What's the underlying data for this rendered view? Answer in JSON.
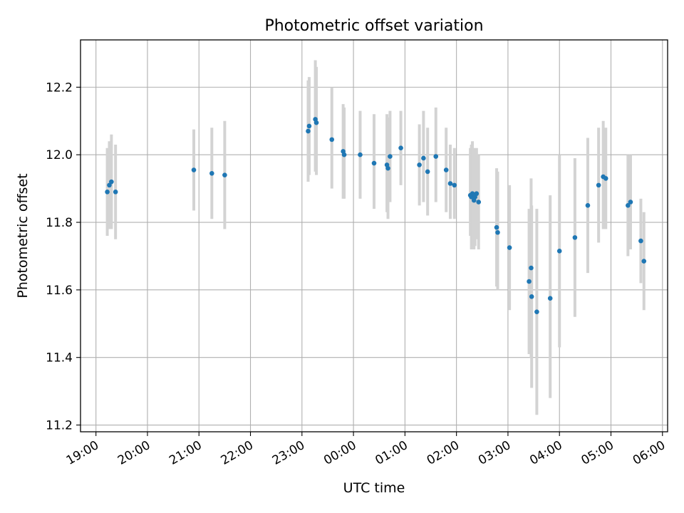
{
  "chart_data": {
    "type": "scatter",
    "title": "Photometric offset variation",
    "xlabel": "UTC time",
    "ylabel": "Photometric offset",
    "x_unit": "hour",
    "x_range": [
      -5.3,
      6.1
    ],
    "ylim": [
      11.18,
      12.34
    ],
    "grid": true,
    "legend": "none",
    "x_ticks": [
      {
        "value": -5,
        "label": "19:00"
      },
      {
        "value": -4,
        "label": "20:00"
      },
      {
        "value": -3,
        "label": "21:00"
      },
      {
        "value": -2,
        "label": "22:00"
      },
      {
        "value": -1,
        "label": "23:00"
      },
      {
        "value": 0,
        "label": "00:00"
      },
      {
        "value": 1,
        "label": "01:00"
      },
      {
        "value": 2,
        "label": "02:00"
      },
      {
        "value": 3,
        "label": "03:00"
      },
      {
        "value": 4,
        "label": "04:00"
      },
      {
        "value": 5,
        "label": "05:00"
      },
      {
        "value": 6,
        "label": "06:00"
      }
    ],
    "y_ticks": [
      {
        "value": 11.2,
        "label": "11.2"
      },
      {
        "value": 11.4,
        "label": "11.4"
      },
      {
        "value": 11.6,
        "label": "11.6"
      },
      {
        "value": 11.8,
        "label": "11.8"
      },
      {
        "value": 12.0,
        "label": "12.0"
      },
      {
        "value": 12.2,
        "label": "12.2"
      }
    ],
    "colors": {
      "point": "#1f77b4",
      "errorbar": "#d3d3d3",
      "grid": "#b0b0b0",
      "axis": "#000000"
    },
    "points": [
      {
        "x": -4.78,
        "y": 11.89,
        "lo": 11.76,
        "hi": 12.02
      },
      {
        "x": -4.74,
        "y": 11.91,
        "lo": 11.78,
        "hi": 12.04
      },
      {
        "x": -4.7,
        "y": 11.92,
        "lo": 11.78,
        "hi": 12.06
      },
      {
        "x": -4.62,
        "y": 11.89,
        "lo": 11.75,
        "hi": 12.03
      },
      {
        "x": -3.1,
        "y": 11.955,
        "lo": 11.835,
        "hi": 12.075
      },
      {
        "x": -2.75,
        "y": 11.945,
        "lo": 11.81,
        "hi": 12.08
      },
      {
        "x": -2.5,
        "y": 11.94,
        "lo": 11.78,
        "hi": 12.1
      },
      {
        "x": -0.88,
        "y": 12.07,
        "lo": 11.92,
        "hi": 12.22
      },
      {
        "x": -0.86,
        "y": 12.085,
        "lo": 11.94,
        "hi": 12.23
      },
      {
        "x": -0.74,
        "y": 12.105,
        "lo": 11.95,
        "hi": 12.28
      },
      {
        "x": -0.72,
        "y": 12.095,
        "lo": 11.94,
        "hi": 12.26
      },
      {
        "x": -0.42,
        "y": 12.045,
        "lo": 11.9,
        "hi": 12.2
      },
      {
        "x": -0.2,
        "y": 12.01,
        "lo": 11.87,
        "hi": 12.15
      },
      {
        "x": -0.18,
        "y": 12.0,
        "lo": 11.87,
        "hi": 12.14
      },
      {
        "x": 0.13,
        "y": 12.0,
        "lo": 11.87,
        "hi": 12.13
      },
      {
        "x": 0.4,
        "y": 11.975,
        "lo": 11.84,
        "hi": 12.12
      },
      {
        "x": 0.65,
        "y": 11.97,
        "lo": 11.83,
        "hi": 12.12
      },
      {
        "x": 0.67,
        "y": 11.96,
        "lo": 11.81,
        "hi": 12.11
      },
      {
        "x": 0.71,
        "y": 11.995,
        "lo": 11.86,
        "hi": 12.13
      },
      {
        "x": 0.92,
        "y": 12.02,
        "lo": 11.91,
        "hi": 12.13
      },
      {
        "x": 1.28,
        "y": 11.97,
        "lo": 11.85,
        "hi": 12.09
      },
      {
        "x": 1.36,
        "y": 11.99,
        "lo": 11.86,
        "hi": 12.13
      },
      {
        "x": 1.44,
        "y": 11.95,
        "lo": 11.82,
        "hi": 12.08
      },
      {
        "x": 1.6,
        "y": 11.995,
        "lo": 11.86,
        "hi": 12.14
      },
      {
        "x": 1.8,
        "y": 11.955,
        "lo": 11.83,
        "hi": 12.08
      },
      {
        "x": 1.88,
        "y": 11.915,
        "lo": 11.81,
        "hi": 12.03
      },
      {
        "x": 1.96,
        "y": 11.91,
        "lo": 11.81,
        "hi": 12.02
      },
      {
        "x": 2.27,
        "y": 11.88,
        "lo": 11.76,
        "hi": 12.02
      },
      {
        "x": 2.29,
        "y": 11.875,
        "lo": 11.72,
        "hi": 12.03
      },
      {
        "x": 2.31,
        "y": 11.885,
        "lo": 11.73,
        "hi": 12.04
      },
      {
        "x": 2.34,
        "y": 11.865,
        "lo": 11.72,
        "hi": 12.02
      },
      {
        "x": 2.36,
        "y": 11.875,
        "lo": 11.73,
        "hi": 12.01
      },
      {
        "x": 2.39,
        "y": 11.885,
        "lo": 11.75,
        "hi": 12.02
      },
      {
        "x": 2.43,
        "y": 11.86,
        "lo": 11.72,
        "hi": 12.0
      },
      {
        "x": 2.78,
        "y": 11.785,
        "lo": 11.61,
        "hi": 11.96
      },
      {
        "x": 2.8,
        "y": 11.77,
        "lo": 11.6,
        "hi": 11.95
      },
      {
        "x": 3.03,
        "y": 11.725,
        "lo": 11.54,
        "hi": 11.91
      },
      {
        "x": 3.41,
        "y": 11.625,
        "lo": 11.41,
        "hi": 11.84
      },
      {
        "x": 3.45,
        "y": 11.665,
        "lo": 11.4,
        "hi": 11.93
      },
      {
        "x": 3.46,
        "y": 11.58,
        "lo": 11.31,
        "hi": 11.85
      },
      {
        "x": 3.56,
        "y": 11.535,
        "lo": 11.23,
        "hi": 11.84
      },
      {
        "x": 3.82,
        "y": 11.575,
        "lo": 11.28,
        "hi": 11.88
      },
      {
        "x": 4.0,
        "y": 11.715,
        "lo": 11.43,
        "hi": 12.0
      },
      {
        "x": 4.3,
        "y": 11.755,
        "lo": 11.52,
        "hi": 11.99
      },
      {
        "x": 4.55,
        "y": 11.85,
        "lo": 11.65,
        "hi": 12.05
      },
      {
        "x": 4.76,
        "y": 11.91,
        "lo": 11.74,
        "hi": 12.08
      },
      {
        "x": 4.85,
        "y": 11.935,
        "lo": 11.78,
        "hi": 12.1
      },
      {
        "x": 4.9,
        "y": 11.93,
        "lo": 11.78,
        "hi": 12.08
      },
      {
        "x": 5.33,
        "y": 11.85,
        "lo": 11.7,
        "hi": 12.0
      },
      {
        "x": 5.38,
        "y": 11.86,
        "lo": 11.72,
        "hi": 12.0
      },
      {
        "x": 5.58,
        "y": 11.745,
        "lo": 11.62,
        "hi": 11.87
      },
      {
        "x": 5.64,
        "y": 11.685,
        "lo": 11.54,
        "hi": 11.83
      }
    ]
  }
}
